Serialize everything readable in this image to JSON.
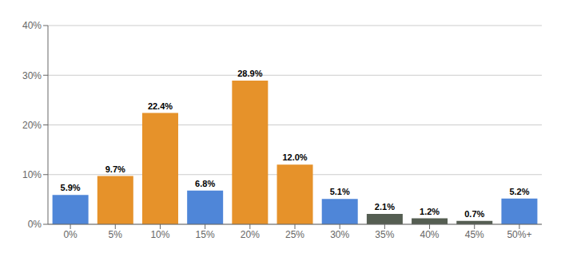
{
  "chart_data": {
    "type": "bar",
    "categories": [
      "0%",
      "5%",
      "10%",
      "15%",
      "20%",
      "25%",
      "30%",
      "35%",
      "40%",
      "45%",
      "50%+"
    ],
    "values": [
      5.9,
      9.7,
      22.4,
      6.8,
      28.9,
      12.0,
      5.1,
      2.1,
      1.2,
      0.7,
      5.2
    ],
    "value_labels": [
      "5.9%",
      "9.7%",
      "22.4%",
      "6.8%",
      "28.9%",
      "12.0%",
      "5.1%",
      "2.1%",
      "1.2%",
      "0.7%",
      "5.2%"
    ],
    "colors": [
      "#4f86d8",
      "#e6922a",
      "#e6922a",
      "#4f86d8",
      "#e6922a",
      "#e6922a",
      "#4f86d8",
      "#555e52",
      "#555e52",
      "#555e52",
      "#4f86d8"
    ],
    "ylim": [
      0,
      40
    ],
    "yticks": [
      {
        "value": 0,
        "label": "0%"
      },
      {
        "value": 10,
        "label": "10%"
      },
      {
        "value": 20,
        "label": "20%"
      },
      {
        "value": 30,
        "label": "30%"
      },
      {
        "value": 40,
        "label": "40%"
      }
    ],
    "grid": true,
    "data_labels": true
  }
}
